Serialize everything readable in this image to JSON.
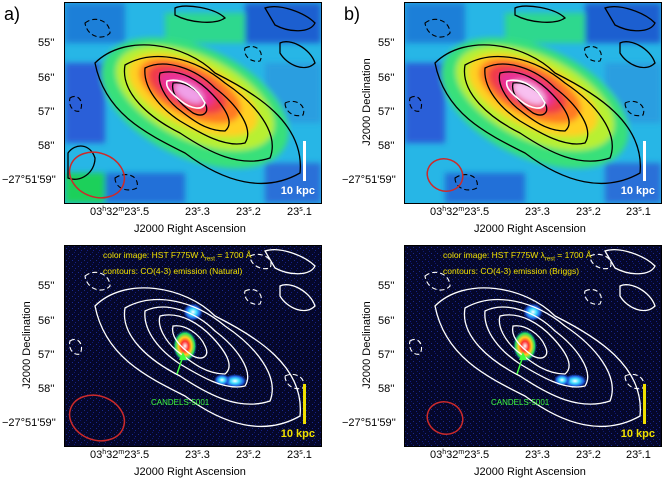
{
  "panel_labels": [
    "a)",
    "b)"
  ],
  "y_ticks": [
    "55''",
    "56''",
    "57''",
    "58''",
    "−27°51'59''"
  ],
  "x_ticks": {
    "first_prefix": "03",
    "first_h": "h",
    "first_min": "32",
    "first_m": "m",
    "first_sec": "23",
    "first_s": "s",
    "first_frac": ".5",
    "others": [
      "23",
      "23",
      "23"
    ],
    "others_frac": [
      ".3",
      ".2",
      ".1"
    ],
    "s_unit": "s"
  },
  "x_axis_label": "J2000 Right Ascension",
  "y_axis_label": "J2000 Declination",
  "scale_bar_label": "10 kpc",
  "bottom_annotations": {
    "left": {
      "line1_a": "color image: HST F775W λ",
      "line1_sub": "rest",
      "line1_b": " = 1700 Å",
      "line2": "contours: CO(4-3) emission (Natural)"
    },
    "right": {
      "line1_a": "color image: HST F775W λ",
      "line1_sub": "rest",
      "line1_b": " = 1700 Å",
      "line2": "contours: CO(4-3) emission (Briggs)"
    }
  },
  "source_label": "CANDELS-5001",
  "colors": {
    "beam": "#cc2a2a",
    "scale_bar_top": "#ffffff",
    "scale_bar_bottom": "#f0e000",
    "arrow": "#40ff40"
  }
}
